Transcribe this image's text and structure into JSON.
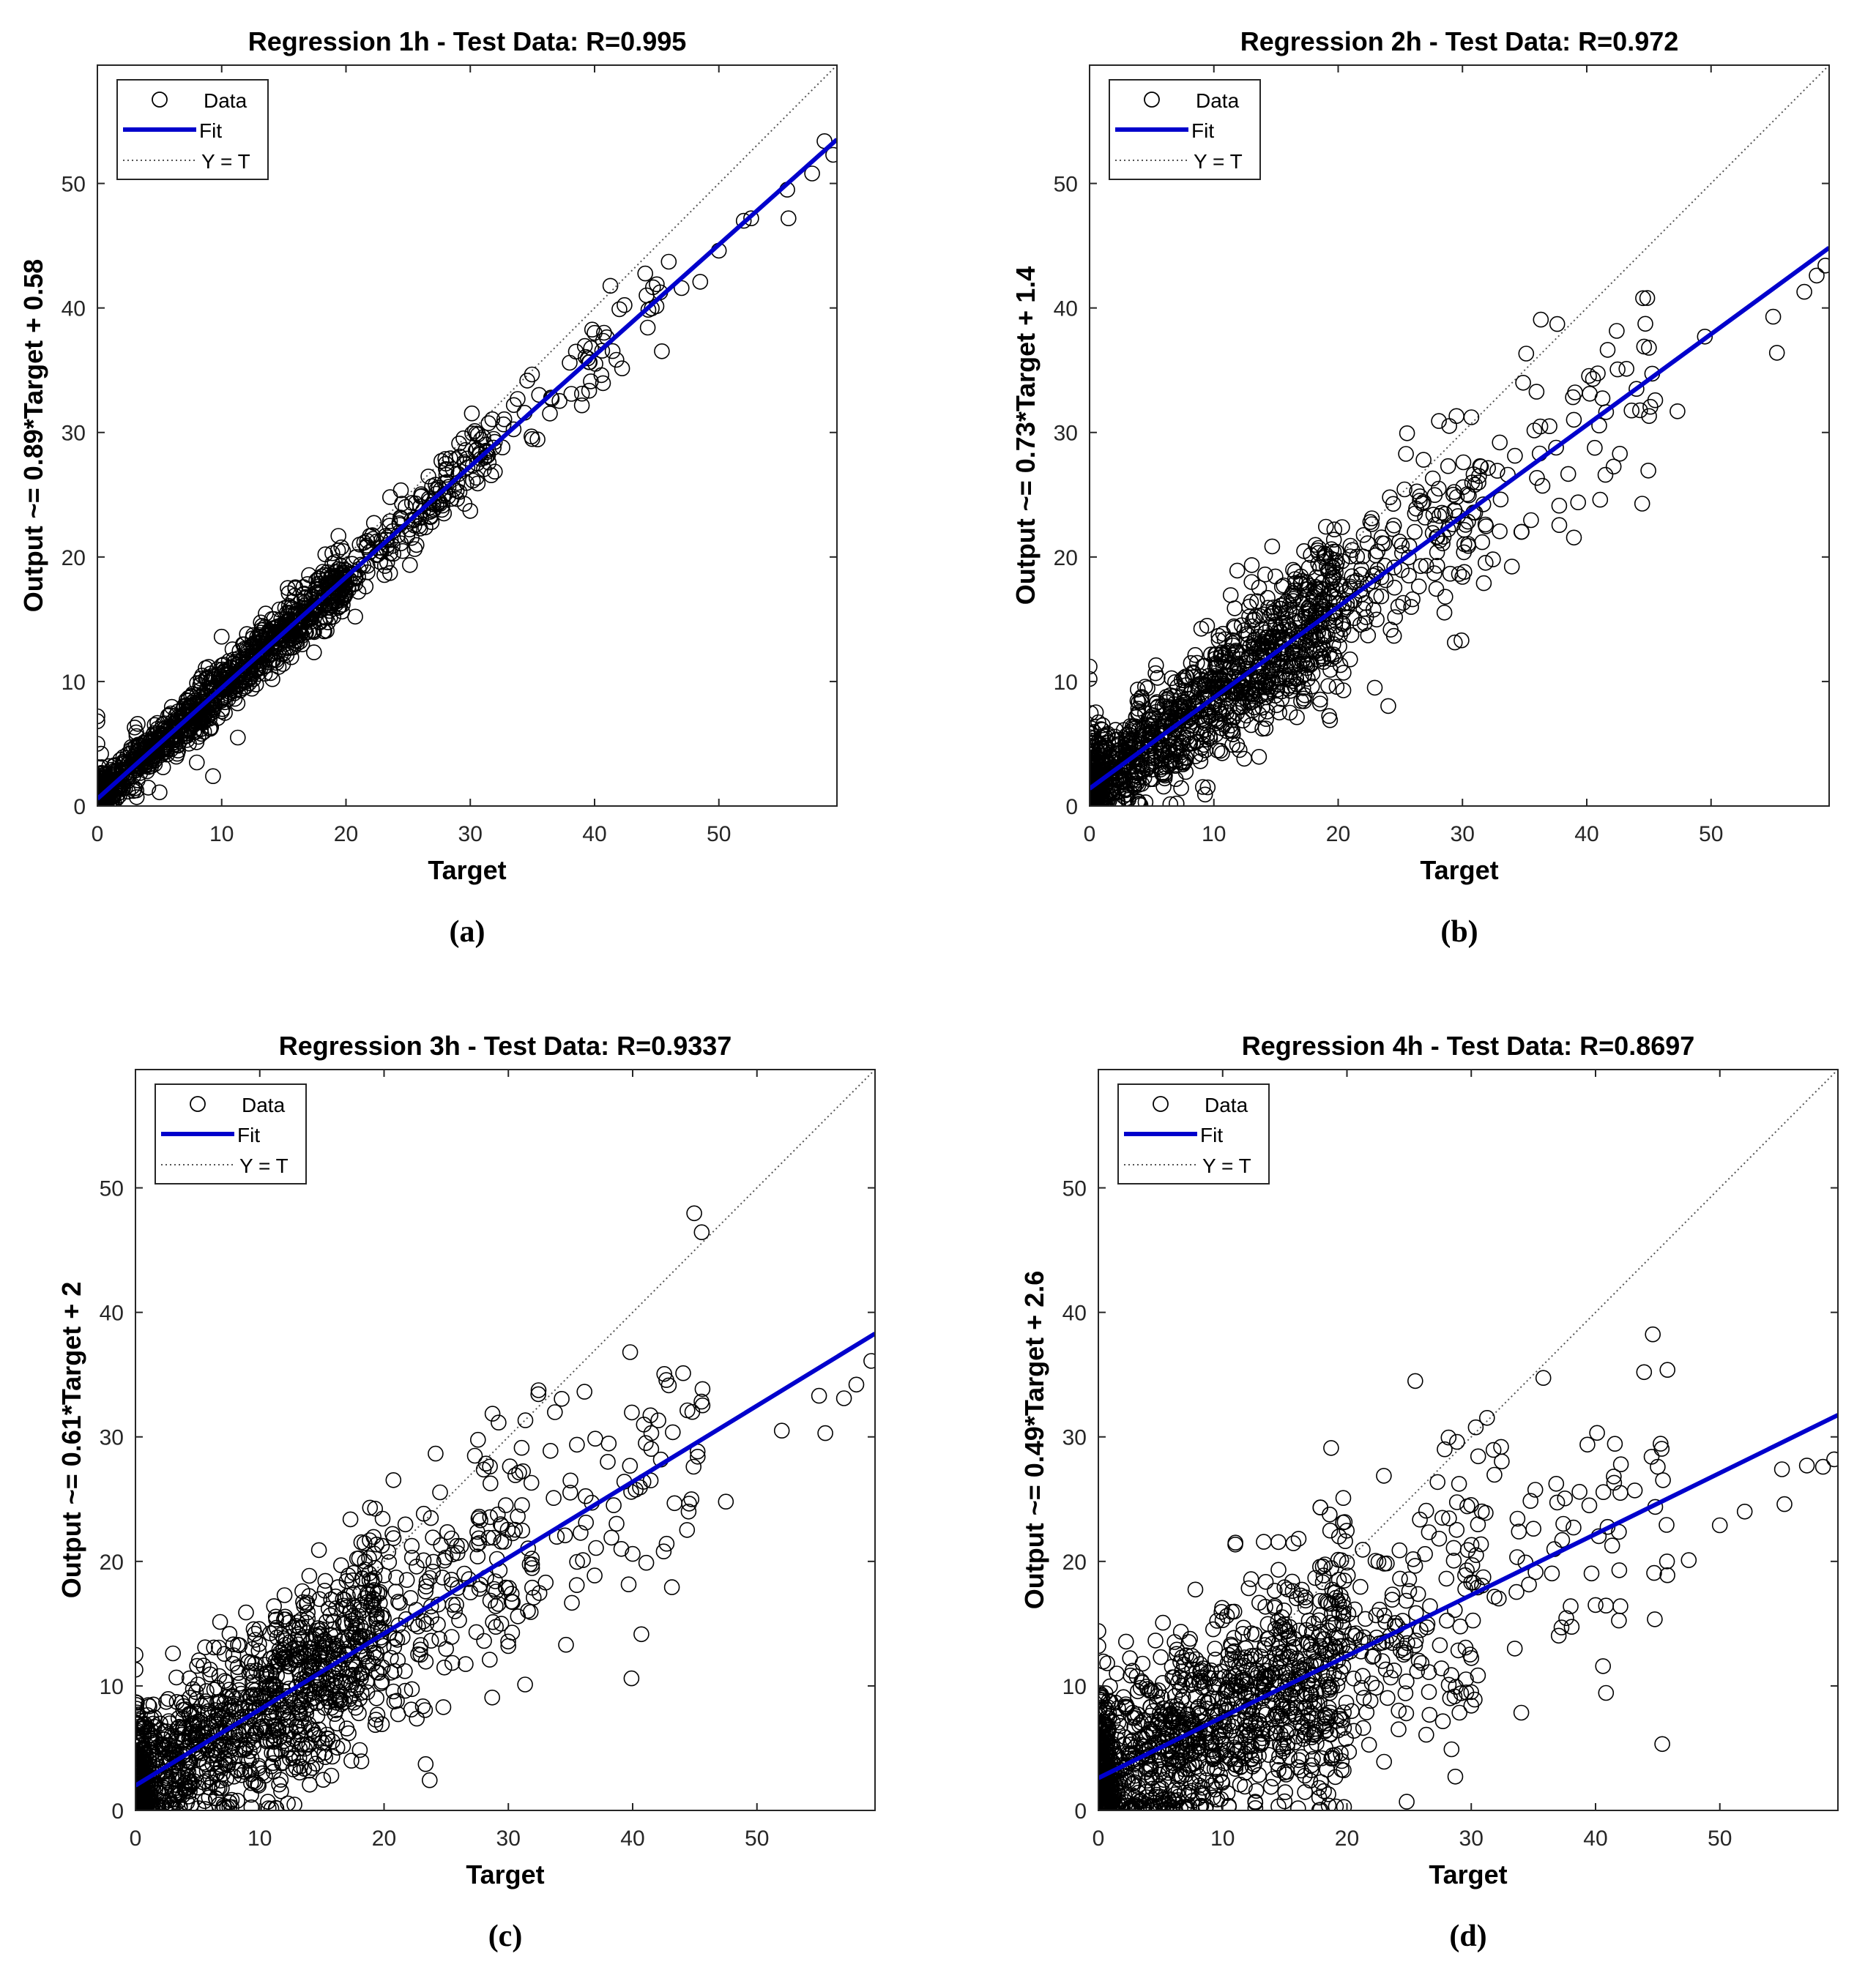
{
  "colors": {
    "fit": "#0000cc",
    "data": "#000000",
    "identity": "#555555",
    "axis": "#262626"
  },
  "legend_labels": {
    "data": "Data",
    "fit": "Fit",
    "identity": "Y = T"
  },
  "chart_data": [
    {
      "type": "scatter",
      "panel": "a",
      "title": "Regression 1h - Test Data: R=0.995",
      "xlabel": "Target",
      "ylabel": "Output ~= 0.89*Target + 0.58",
      "caption": "(a)",
      "xlim": [
        0,
        59.5
      ],
      "ylim": [
        0,
        59.5
      ],
      "xticks": [
        0,
        10,
        20,
        30,
        40,
        50
      ],
      "yticks": [
        0,
        10,
        20,
        30,
        40,
        50
      ],
      "grid": false,
      "legend": "top-left",
      "fit": {
        "slope": 0.89,
        "intercept": 0.58
      },
      "r": 0.995,
      "scatter_sd": [
        0.8,
        0.025
      ],
      "seed": 11,
      "outliers": [
        [
          0,
          7.2
        ],
        [
          0,
          6.8
        ],
        [
          0,
          5.0
        ],
        [
          0.3,
          4.2
        ],
        [
          3,
          6.3
        ],
        [
          8,
          3.5
        ],
        [
          9.3,
          2.4
        ],
        [
          10,
          13.6
        ],
        [
          11.3,
          5.5
        ],
        [
          5,
          1.1
        ],
        [
          12.1,
          12.5
        ],
        [
          58.5,
          53.4
        ],
        [
          59.2,
          52.3
        ],
        [
          55.5,
          49.5
        ],
        [
          55.6,
          47.2
        ],
        [
          57.5,
          50.8
        ],
        [
          52,
          47
        ],
        [
          52.6,
          47.2
        ],
        [
          50,
          44.6
        ],
        [
          48.5,
          42.1
        ],
        [
          47,
          41.6
        ],
        [
          45,
          41.9
        ],
        [
          42,
          39.9
        ],
        [
          40,
          38
        ],
        [
          38,
          35.6
        ],
        [
          36.5,
          32.8
        ],
        [
          33.5,
          32.2
        ],
        [
          30,
          23.7
        ]
      ]
    },
    {
      "type": "scatter",
      "panel": "b",
      "title": "Regression 2h - Test Data: R=0.972",
      "xlabel": "Target",
      "ylabel": "Output ~= 0.73*Target + 1.4",
      "caption": "(b)",
      "xlim": [
        0,
        59.5
      ],
      "ylim": [
        0,
        59.5
      ],
      "xticks": [
        0,
        10,
        20,
        30,
        40,
        50
      ],
      "yticks": [
        0,
        10,
        20,
        30,
        40,
        50
      ],
      "grid": false,
      "legend": "top-left",
      "fit": {
        "slope": 0.73,
        "intercept": 1.4
      },
      "r": 0.972,
      "scatter_sd": [
        1.8,
        0.07
      ],
      "seed": 23,
      "outliers": [
        [
          0,
          11.2
        ],
        [
          0,
          10.2
        ],
        [
          7,
          0.2
        ],
        [
          9.5,
          1.5
        ],
        [
          4.5,
          0.3
        ],
        [
          49.5,
          37.7
        ],
        [
          55,
          39.3
        ],
        [
          55.3,
          36.4
        ],
        [
          57.5,
          41.3
        ],
        [
          58.5,
          42.6
        ],
        [
          59.2,
          43.4
        ],
        [
          47.3,
          31.7
        ],
        [
          41.5,
          26.6
        ],
        [
          44,
          33.5
        ],
        [
          45,
          36.8
        ],
        [
          40.5,
          34.3
        ],
        [
          37,
          30.5
        ],
        [
          33,
          29.2
        ],
        [
          31,
          25.8
        ],
        [
          30,
          18.4
        ]
      ]
    },
    {
      "type": "scatter",
      "panel": "c",
      "title": "Regression 3h - Test Data: R=0.9337",
      "xlabel": "Target",
      "ylabel": "Output ~= 0.61*Target + 2",
      "caption": "(c)",
      "xlim": [
        0,
        59.5
      ],
      "ylim": [
        0,
        59.5
      ],
      "xticks": [
        0,
        10,
        20,
        30,
        40,
        50
      ],
      "yticks": [
        0,
        10,
        20,
        30,
        40,
        50
      ],
      "grid": false,
      "legend": "top-left",
      "fit": {
        "slope": 0.61,
        "intercept": 2.0
      },
      "r": 0.9337,
      "scatter_sd": [
        2.6,
        0.1
      ],
      "seed": 37,
      "outliers": [
        [
          0,
          12.5
        ],
        [
          0,
          11.3
        ],
        [
          11.3,
          0.2
        ],
        [
          44.8,
          32
        ],
        [
          47.5,
          24.8
        ],
        [
          55,
          33.3
        ],
        [
          55.5,
          30.3
        ],
        [
          57,
          33.1
        ],
        [
          58,
          34.2
        ],
        [
          59.2,
          36.1
        ],
        [
          41.5,
          30.3
        ],
        [
          42.5,
          20.8
        ],
        [
          40,
          20.6
        ],
        [
          44.5,
          24
        ],
        [
          35,
          26.5
        ],
        [
          30,
          13.2
        ],
        [
          33,
          18.3
        ],
        [
          36,
          20.1
        ],
        [
          38,
          28
        ],
        [
          52,
          30.5
        ]
      ]
    },
    {
      "type": "scatter",
      "panel": "d",
      "title": "Regression 4h - Test Data: R=0.8697",
      "xlabel": "Target",
      "ylabel": "Output ~= 0.49*Target + 2.6",
      "caption": "(d)",
      "xlim": [
        0,
        59.5
      ],
      "ylim": [
        0,
        59.5
      ],
      "xticks": [
        0,
        10,
        20,
        30,
        40,
        50
      ],
      "yticks": [
        0,
        10,
        20,
        30,
        40,
        50
      ],
      "grid": false,
      "legend": "top-left",
      "fit": {
        "slope": 0.49,
        "intercept": 2.6
      },
      "r": 0.8697,
      "scatter_sd": [
        3.0,
        0.12
      ],
      "seed": 53,
      "outliers": [
        [
          0,
          14.4
        ],
        [
          0,
          13.2
        ],
        [
          10.5,
          0.3
        ],
        [
          45,
          27.6
        ],
        [
          55,
          27.4
        ],
        [
          55.2,
          24.6
        ],
        [
          57,
          27.7
        ],
        [
          58.3,
          27.6
        ],
        [
          59.2,
          28.2
        ],
        [
          42,
          25.5
        ],
        [
          39.5,
          24.5
        ],
        [
          42,
          16.4
        ],
        [
          38,
          16.4
        ],
        [
          40,
          16.5
        ],
        [
          30,
          9.5
        ],
        [
          33.5,
          13
        ],
        [
          47.5,
          20.1
        ],
        [
          50,
          22.9
        ],
        [
          52,
          24
        ],
        [
          20,
          19.9
        ]
      ]
    }
  ]
}
